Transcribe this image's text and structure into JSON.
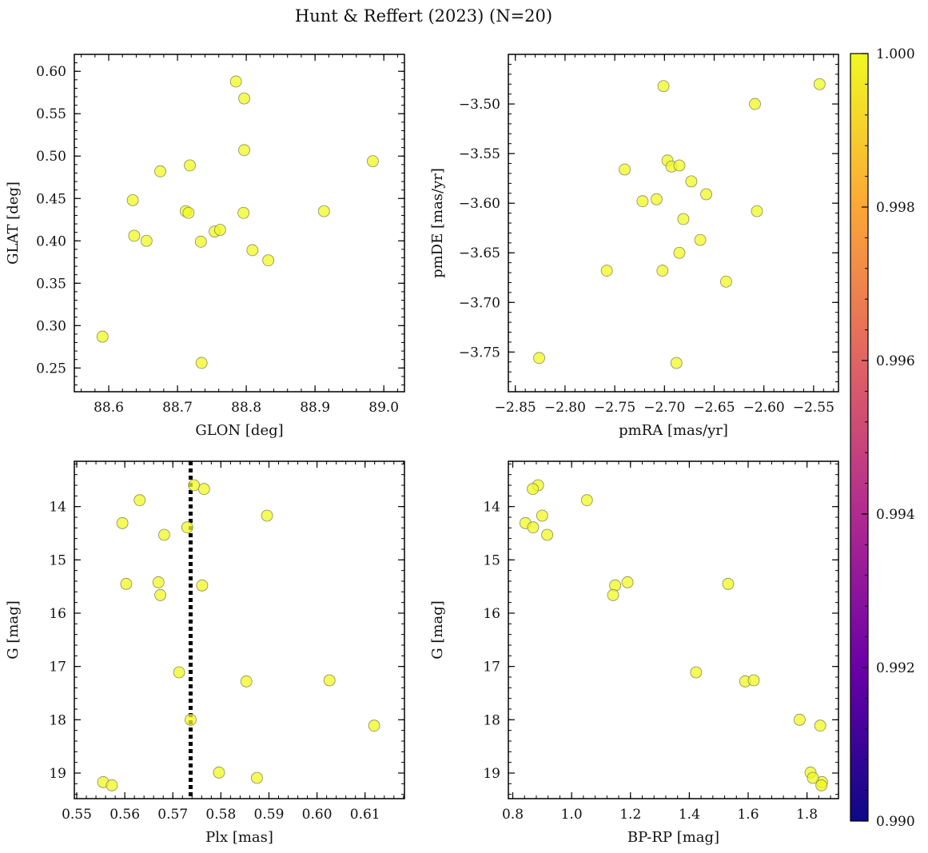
{
  "figure": {
    "title": "Hunt & Reffert (2023) (N=20)"
  },
  "colorbar": {
    "min": 0.99,
    "max": 1.0,
    "ticks": [
      0.99,
      0.992,
      0.994,
      0.996,
      0.998,
      1.0
    ],
    "tick_labels": [
      "0.990",
      "0.992",
      "0.994",
      "0.996",
      "0.998",
      "1.000"
    ],
    "colormap": "plasma",
    "colors": [
      "#0d0887",
      "#6a00a8",
      "#b12a90",
      "#e16462",
      "#fca636",
      "#f0f921"
    ]
  },
  "style": {
    "marker_fill": "#f0f921",
    "marker_edge": "#8a8a5a",
    "line_color": "#000000"
  },
  "chart_data": [
    {
      "type": "scatter",
      "xlabel": "GLON [deg]",
      "ylabel": "GLAT [deg]",
      "xlim": [
        88.55,
        89.03
      ],
      "ylim": [
        0.222,
        0.62
      ],
      "xticks": [
        88.6,
        88.7,
        88.8,
        88.9,
        89.0
      ],
      "xtick_labels": [
        "88.6",
        "88.7",
        "88.8",
        "88.9",
        "89.0"
      ],
      "yticks": [
        0.25,
        0.3,
        0.35,
        0.4,
        0.45,
        0.5,
        0.55,
        0.6
      ],
      "ytick_labels": [
        "0.25",
        "0.30",
        "0.35",
        "0.40",
        "0.45",
        "0.50",
        "0.55",
        "0.60"
      ],
      "x": [
        88.785,
        88.797,
        88.797,
        88.675,
        88.718,
        88.635,
        88.712,
        88.716,
        88.796,
        88.637,
        88.655,
        88.734,
        88.754,
        88.762,
        88.809,
        88.832,
        88.591,
        88.735,
        88.984,
        88.913
      ],
      "y": [
        0.588,
        0.568,
        0.507,
        0.482,
        0.489,
        0.448,
        0.435,
        0.433,
        0.433,
        0.406,
        0.4,
        0.399,
        0.411,
        0.413,
        0.389,
        0.377,
        0.287,
        0.256,
        0.494,
        0.435
      ]
    },
    {
      "type": "scatter",
      "xlabel": "pmRA [mas/yr]",
      "ylabel": "pmDE [mas/yr]",
      "xlim": [
        -2.857,
        -2.525
      ],
      "ylim": [
        -3.79,
        -3.45
      ],
      "xticks": [
        -2.85,
        -2.8,
        -2.75,
        -2.7,
        -2.65,
        -2.6,
        -2.55
      ],
      "xtick_labels": [
        "−2.85",
        "−2.80",
        "−2.75",
        "−2.70",
        "−2.65",
        "−2.60",
        "−2.55"
      ],
      "yticks": [
        -3.75,
        -3.7,
        -3.65,
        -3.6,
        -3.55,
        -3.5
      ],
      "ytick_labels": [
        "−3.75",
        "−3.70",
        "−3.65",
        "−3.60",
        "−3.55",
        "−3.50"
      ],
      "x": [
        -2.701,
        -2.544,
        -2.609,
        -2.697,
        -2.693,
        -2.685,
        -2.74,
        -2.673,
        -2.708,
        -2.722,
        -2.658,
        -2.607,
        -2.681,
        -2.664,
        -2.685,
        -2.702,
        -2.758,
        -2.638,
        -2.826,
        -2.688
      ],
      "y": [
        -3.482,
        -3.48,
        -3.5,
        -3.557,
        -3.563,
        -3.562,
        -3.566,
        -3.578,
        -3.596,
        -3.598,
        -3.591,
        -3.608,
        -3.616,
        -3.637,
        -3.65,
        -3.668,
        -3.668,
        -3.679,
        -3.756,
        -3.761
      ]
    },
    {
      "type": "scatter",
      "xlabel": "Plx [mas]",
      "ylabel": "G [mag]",
      "y_inverted": true,
      "xlim": [
        0.5495,
        0.6182
      ],
      "ylim": [
        19.48,
        13.15
      ],
      "xticks": [
        0.55,
        0.56,
        0.57,
        0.58,
        0.59,
        0.6,
        0.61
      ],
      "xtick_labels": [
        "0.55",
        "0.56",
        "0.57",
        "0.58",
        "0.59",
        "0.60",
        "0.61"
      ],
      "yticks": [
        14,
        15,
        16,
        17,
        18,
        19
      ],
      "ytick_labels": [
        "14",
        "15",
        "16",
        "17",
        "18",
        "19"
      ],
      "vline": 0.5737,
      "x": [
        0.5744,
        0.5765,
        0.5631,
        0.5595,
        0.5896,
        0.573,
        0.5682,
        0.5603,
        0.567,
        0.5761,
        0.5674,
        0.5713,
        0.5853,
        0.6026,
        0.5737,
        0.6119,
        0.5555,
        0.5573,
        0.5796,
        0.5875
      ],
      "y": [
        13.6,
        13.67,
        13.88,
        14.31,
        14.17,
        14.39,
        14.53,
        15.45,
        15.42,
        15.48,
        15.66,
        17.11,
        17.28,
        17.26,
        18.0,
        18.11,
        19.17,
        19.23,
        18.99,
        19.09
      ]
    },
    {
      "type": "scatter",
      "xlabel": "BP-RP [mag]",
      "ylabel": "G [mag]",
      "y_inverted": true,
      "xlim": [
        0.785,
        1.907
      ],
      "ylim": [
        19.48,
        13.15
      ],
      "xticks": [
        0.8,
        1.0,
        1.2,
        1.4,
        1.6,
        1.8
      ],
      "xtick_labels": [
        "0.8",
        "1.0",
        "1.2",
        "1.4",
        "1.6",
        "1.8"
      ],
      "yticks": [
        14,
        15,
        16,
        17,
        18,
        19
      ],
      "ytick_labels": [
        "14",
        "15",
        "16",
        "17",
        "18",
        "19"
      ],
      "x": [
        0.886,
        0.868,
        1.052,
        0.843,
        0.9,
        0.869,
        0.917,
        1.19,
        1.148,
        1.141,
        1.532,
        1.423,
        1.59,
        1.619,
        1.775,
        1.845,
        1.851,
        1.849,
        1.812,
        1.82
      ],
      "y": [
        13.6,
        13.67,
        13.88,
        14.31,
        14.17,
        14.39,
        14.53,
        15.42,
        15.48,
        15.66,
        15.45,
        17.11,
        17.28,
        17.26,
        18.0,
        18.11,
        19.17,
        19.23,
        18.99,
        19.09
      ]
    }
  ]
}
